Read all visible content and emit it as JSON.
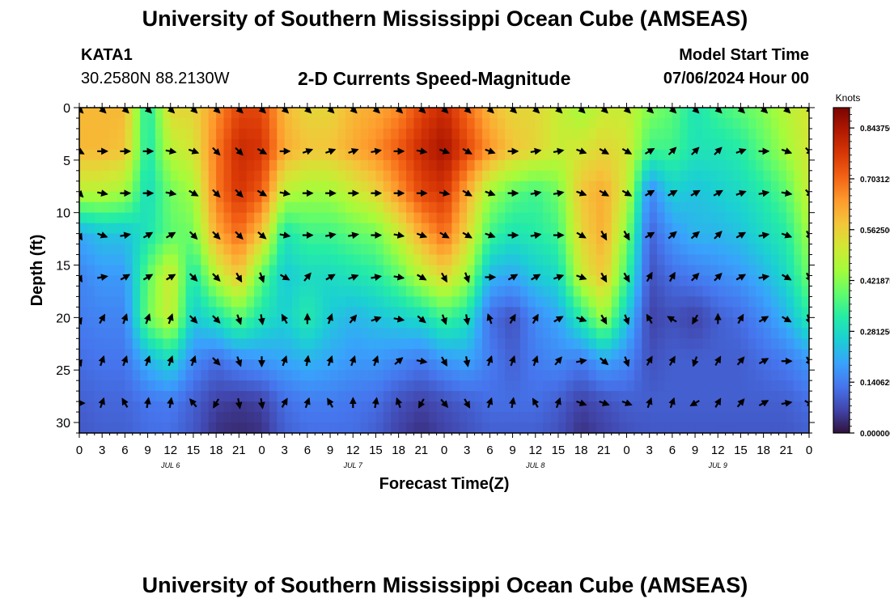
{
  "page": {
    "title_top": "University of Southern Mississippi Ocean Cube (AMSEAS)",
    "title_bottom": "University of Southern Mississippi Ocean Cube (AMSEAS)",
    "station": "KATA1",
    "coords": "30.2580N  88.2130W",
    "model_start_label": "Model Start Time",
    "model_start_value": "07/06/2024 Hour 00"
  },
  "chart_data": {
    "type": "heatmap",
    "title": "2-D Currents Speed-Magnitude",
    "xlabel": "Forecast Time(Z)",
    "ylabel": "Depth (ft)",
    "x_tick_labels": [
      "0",
      "3",
      "6",
      "9",
      "12",
      "15",
      "18",
      "21",
      "0",
      "3",
      "6",
      "9",
      "12",
      "15",
      "18",
      "21",
      "0",
      "3",
      "6",
      "9",
      "12",
      "15",
      "18",
      "21",
      "0",
      "3",
      "6",
      "9",
      "12",
      "15",
      "18",
      "21",
      "0"
    ],
    "date_labels": [
      "JUL 6",
      "JUL 7",
      "JUL 8",
      "JUL 9"
    ],
    "y_ticks": [
      0,
      5,
      10,
      15,
      20,
      25,
      30
    ],
    "ylim": [
      0,
      31
    ],
    "x_range_hours": [
      0,
      96
    ],
    "colorbar": {
      "label": "Knots",
      "range": [
        0,
        0.9
      ],
      "tick_labels": [
        "0.843750",
        "0.703125",
        "0.562500",
        "0.421875",
        "0.281250",
        "0.140625",
        "0.000000"
      ],
      "tick_values": [
        0.84375,
        0.703125,
        0.5625,
        0.421875,
        0.28125,
        0.140625,
        0.0
      ]
    },
    "colors": [
      "#30123b",
      "#4145ab",
      "#4675ed",
      "#39a2fc",
      "#1bcfd4",
      "#24eca6",
      "#61fc6c",
      "#a4fc3b",
      "#d1e834",
      "#f3c63a",
      "#fe9b2d",
      "#f36315",
      "#d93806",
      "#b11901",
      "#7a0403"
    ],
    "arrow_depths": [
      0,
      4,
      8,
      12,
      16,
      20,
      24,
      28
    ],
    "arrow_times": [
      0,
      3,
      6,
      9,
      12,
      15,
      18,
      21,
      24,
      27,
      30,
      33,
      36,
      39,
      42,
      45,
      48,
      51,
      54,
      57,
      60,
      63,
      66,
      69,
      72,
      75,
      78,
      81,
      84,
      87,
      90,
      93,
      96
    ],
    "grid_times": [
      0,
      3,
      6,
      9,
      12,
      15,
      18,
      21,
      24,
      27,
      30,
      33,
      36,
      39,
      42,
      45,
      48,
      51,
      54,
      57,
      60,
      63,
      66,
      69,
      72,
      75,
      78,
      81,
      84,
      87,
      90,
      93,
      96
    ],
    "grid_depths": [
      0,
      4,
      8,
      12,
      16,
      20,
      24,
      28,
      31
    ],
    "speed_grid": [
      [
        0.6,
        0.6,
        0.6,
        0.3,
        0.55,
        0.55,
        0.65,
        0.75,
        0.75,
        0.6,
        0.55,
        0.55,
        0.6,
        0.62,
        0.66,
        0.75,
        0.8,
        0.7,
        0.6,
        0.55,
        0.55,
        0.5,
        0.45,
        0.5,
        0.5,
        0.42,
        0.38,
        0.3,
        0.35,
        0.38,
        0.42,
        0.48,
        0.52
      ],
      [
        0.6,
        0.6,
        0.58,
        0.3,
        0.48,
        0.52,
        0.68,
        0.8,
        0.78,
        0.62,
        0.58,
        0.58,
        0.62,
        0.66,
        0.72,
        0.8,
        0.85,
        0.75,
        0.65,
        0.58,
        0.55,
        0.5,
        0.52,
        0.55,
        0.52,
        0.35,
        0.35,
        0.3,
        0.3,
        0.32,
        0.38,
        0.45,
        0.52
      ],
      [
        0.48,
        0.48,
        0.45,
        0.28,
        0.4,
        0.45,
        0.68,
        0.78,
        0.72,
        0.48,
        0.45,
        0.45,
        0.5,
        0.55,
        0.65,
        0.75,
        0.78,
        0.62,
        0.45,
        0.38,
        0.35,
        0.4,
        0.58,
        0.62,
        0.5,
        0.15,
        0.26,
        0.24,
        0.26,
        0.28,
        0.32,
        0.38,
        0.5
      ],
      [
        0.2,
        0.24,
        0.24,
        0.3,
        0.38,
        0.4,
        0.62,
        0.7,
        0.58,
        0.3,
        0.35,
        0.35,
        0.38,
        0.4,
        0.5,
        0.62,
        0.7,
        0.55,
        0.35,
        0.3,
        0.32,
        0.35,
        0.55,
        0.62,
        0.42,
        0.1,
        0.18,
        0.22,
        0.22,
        0.24,
        0.28,
        0.32,
        0.45
      ],
      [
        0.15,
        0.18,
        0.18,
        0.38,
        0.52,
        0.3,
        0.48,
        0.58,
        0.38,
        0.25,
        0.28,
        0.28,
        0.3,
        0.32,
        0.38,
        0.48,
        0.55,
        0.45,
        0.22,
        0.2,
        0.25,
        0.28,
        0.5,
        0.58,
        0.35,
        0.08,
        0.12,
        0.14,
        0.16,
        0.18,
        0.22,
        0.28,
        0.4
      ],
      [
        0.14,
        0.15,
        0.15,
        0.4,
        0.5,
        0.25,
        0.3,
        0.38,
        0.3,
        0.26,
        0.32,
        0.25,
        0.22,
        0.24,
        0.26,
        0.28,
        0.35,
        0.3,
        0.12,
        0.08,
        0.16,
        0.2,
        0.32,
        0.45,
        0.25,
        0.06,
        0.08,
        0.06,
        0.1,
        0.12,
        0.16,
        0.22,
        0.32
      ],
      [
        0.12,
        0.13,
        0.13,
        0.22,
        0.28,
        0.16,
        0.12,
        0.16,
        0.18,
        0.2,
        0.22,
        0.2,
        0.18,
        0.18,
        0.16,
        0.14,
        0.18,
        0.2,
        0.14,
        0.1,
        0.14,
        0.16,
        0.14,
        0.2,
        0.16,
        0.08,
        0.1,
        0.1,
        0.1,
        0.1,
        0.12,
        0.14,
        0.18
      ],
      [
        0.1,
        0.11,
        0.11,
        0.13,
        0.14,
        0.1,
        0.06,
        0.05,
        0.06,
        0.12,
        0.14,
        0.14,
        0.13,
        0.12,
        0.08,
        0.06,
        0.08,
        0.1,
        0.12,
        0.12,
        0.12,
        0.1,
        0.06,
        0.08,
        0.1,
        0.1,
        0.1,
        0.1,
        0.1,
        0.1,
        0.1,
        0.1,
        0.12
      ],
      [
        0.09,
        0.1,
        0.1,
        0.12,
        0.12,
        0.09,
        0.04,
        0.03,
        0.04,
        0.1,
        0.12,
        0.12,
        0.12,
        0.1,
        0.06,
        0.04,
        0.06,
        0.08,
        0.1,
        0.1,
        0.1,
        0.08,
        0.04,
        0.06,
        0.08,
        0.09,
        0.09,
        0.09,
        0.09,
        0.09,
        0.09,
        0.09,
        0.1
      ]
    ],
    "direction_grid": [
      [
        135,
        135,
        135,
        135,
        135,
        135,
        135,
        135,
        135,
        135,
        135,
        135,
        135,
        135,
        135,
        135,
        135,
        135,
        135,
        135,
        135,
        135,
        135,
        135,
        135,
        135,
        135,
        135,
        135,
        135,
        135,
        135,
        135
      ],
      [
        120,
        90,
        90,
        90,
        100,
        110,
        135,
        135,
        120,
        90,
        70,
        70,
        70,
        80,
        90,
        100,
        110,
        120,
        110,
        90,
        80,
        80,
        110,
        120,
        120,
        60,
        45,
        45,
        45,
        70,
        90,
        110,
        135
      ],
      [
        135,
        100,
        90,
        90,
        100,
        120,
        135,
        135,
        120,
        100,
        90,
        90,
        90,
        90,
        90,
        90,
        100,
        120,
        110,
        90,
        80,
        80,
        110,
        120,
        120,
        60,
        60,
        60,
        60,
        70,
        80,
        100,
        135
      ],
      [
        150,
        110,
        80,
        60,
        60,
        135,
        135,
        135,
        130,
        100,
        90,
        80,
        80,
        90,
        100,
        110,
        120,
        120,
        110,
        90,
        80,
        90,
        120,
        150,
        150,
        60,
        50,
        50,
        45,
        60,
        80,
        110,
        150
      ],
      [
        150,
        80,
        60,
        60,
        60,
        135,
        135,
        150,
        160,
        120,
        40,
        60,
        70,
        80,
        100,
        120,
        150,
        160,
        90,
        60,
        60,
        70,
        110,
        150,
        150,
        30,
        30,
        45,
        45,
        60,
        80,
        120,
        150
      ],
      [
        160,
        30,
        20,
        20,
        20,
        135,
        135,
        160,
        170,
        330,
        0,
        20,
        40,
        70,
        100,
        130,
        160,
        170,
        340,
        30,
        30,
        60,
        110,
        150,
        160,
        330,
        300,
        210,
        0,
        30,
        60,
        120,
        160
      ],
      [
        160,
        20,
        20,
        20,
        20,
        20,
        135,
        160,
        180,
        20,
        10,
        20,
        20,
        20,
        50,
        100,
        150,
        170,
        20,
        20,
        20,
        40,
        80,
        130,
        160,
        30,
        30,
        200,
        30,
        40,
        60,
        90,
        150
      ],
      [
        90,
        20,
        330,
        10,
        10,
        320,
        210,
        170,
        170,
        30,
        20,
        330,
        0,
        10,
        340,
        210,
        140,
        150,
        20,
        10,
        330,
        20,
        110,
        110,
        110,
        20,
        20,
        240,
        30,
        40,
        60,
        80,
        120
      ]
    ]
  }
}
